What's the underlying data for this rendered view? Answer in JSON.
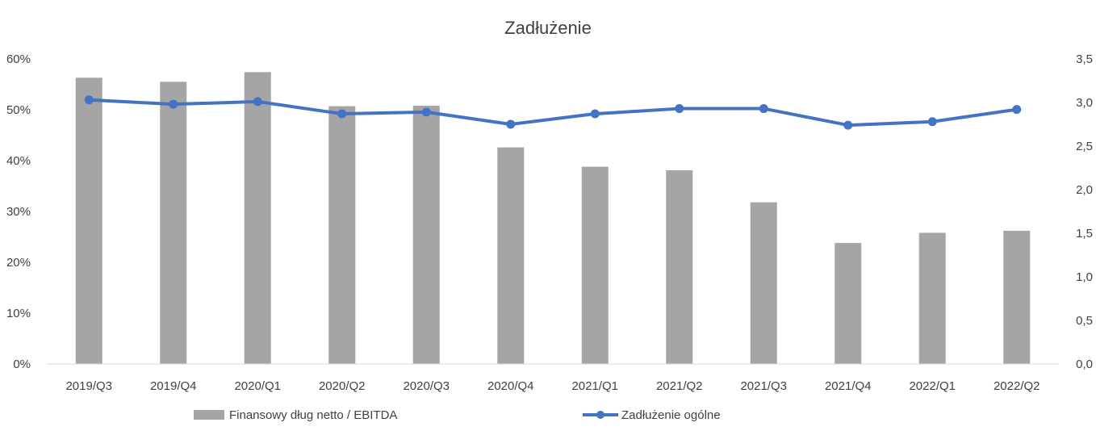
{
  "chart_data": {
    "type": "bar",
    "title": "Zadłużenie",
    "categories": [
      "2019/Q3",
      "2019/Q4",
      "2020/Q1",
      "2020/Q2",
      "2020/Q3",
      "2020/Q4",
      "2021/Q1",
      "2021/Q2",
      "2021/Q3",
      "2021/Q4",
      "2022/Q1",
      "2022/Q2"
    ],
    "series": [
      {
        "name": "Finansowy dług netto / EBITDA",
        "type": "bar",
        "axis": "left",
        "color": "#a5a5a5",
        "values": [
          0.563,
          0.555,
          0.574,
          0.507,
          0.508,
          0.426,
          0.388,
          0.381,
          0.318,
          0.238,
          0.258,
          0.262
        ]
      },
      {
        "name": "Zadłużenie ogólne",
        "type": "line",
        "axis": "right",
        "color": "#4472c4",
        "values": [
          3.03,
          2.98,
          3.01,
          2.87,
          2.89,
          2.75,
          2.87,
          2.93,
          2.93,
          2.74,
          2.78,
          2.92
        ]
      }
    ],
    "y_left": {
      "ylim": [
        0,
        0.6
      ],
      "ticks": [
        0,
        0.1,
        0.2,
        0.3,
        0.4,
        0.5,
        0.6
      ],
      "tick_labels": [
        "0%",
        "10%",
        "20%",
        "30%",
        "40%",
        "50%",
        "60%"
      ]
    },
    "y_right": {
      "ylim": [
        0,
        3.5
      ],
      "ticks": [
        0,
        0.5,
        1.0,
        1.5,
        2.0,
        2.5,
        3.0,
        3.5
      ],
      "tick_labels": [
        "0,0",
        "0,5",
        "1,0",
        "1,5",
        "2,0",
        "2,5",
        "3,0",
        "3,5"
      ]
    },
    "grid": false,
    "legend": "bottom"
  }
}
